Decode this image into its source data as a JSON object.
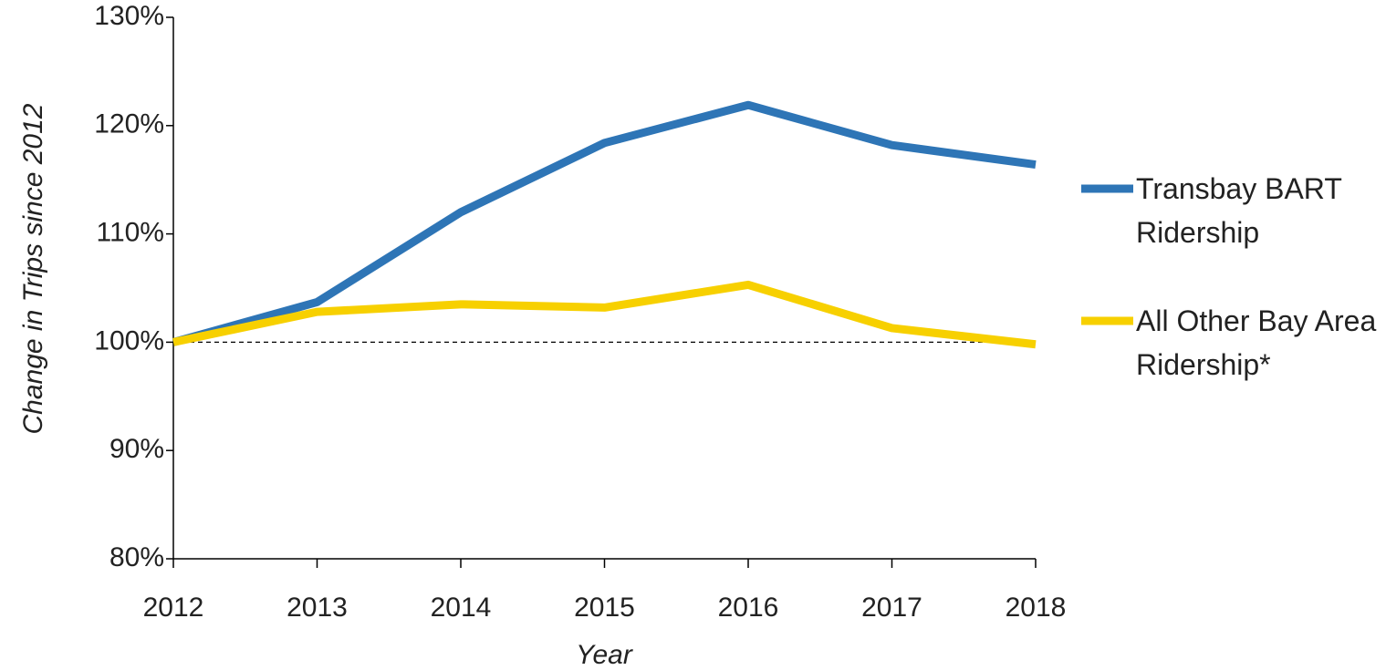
{
  "chart_data": {
    "type": "line",
    "x_label": "Year",
    "y_label": "Change in Trips since 2012",
    "x": [
      2012,
      2013,
      2014,
      2015,
      2016,
      2017,
      2018
    ],
    "xlim": [
      2012,
      2018
    ],
    "xticks": [
      2012,
      2013,
      2014,
      2015,
      2016,
      2017,
      2018
    ],
    "ylim": [
      80,
      130
    ],
    "yticks": [
      {
        "value": 80,
        "label": "80%"
      },
      {
        "value": 90,
        "label": "90%"
      },
      {
        "value": 100,
        "label": "100%"
      },
      {
        "value": 110,
        "label": "110%"
      },
      {
        "value": 120,
        "label": "120%"
      },
      {
        "value": 130,
        "label": "130%"
      }
    ],
    "reference_line": 100,
    "grid": false,
    "legend": "right",
    "series": [
      {
        "name": "Transbay BART Ridership",
        "color": "#2e75b6",
        "values": [
          100,
          103.7,
          112.0,
          118.4,
          121.9,
          118.2,
          116.4
        ]
      },
      {
        "name": "All Other Bay Area Ridership*",
        "color": "#f7d000",
        "values": [
          100,
          102.8,
          103.5,
          103.2,
          105.3,
          101.3,
          99.8
        ]
      }
    ]
  }
}
